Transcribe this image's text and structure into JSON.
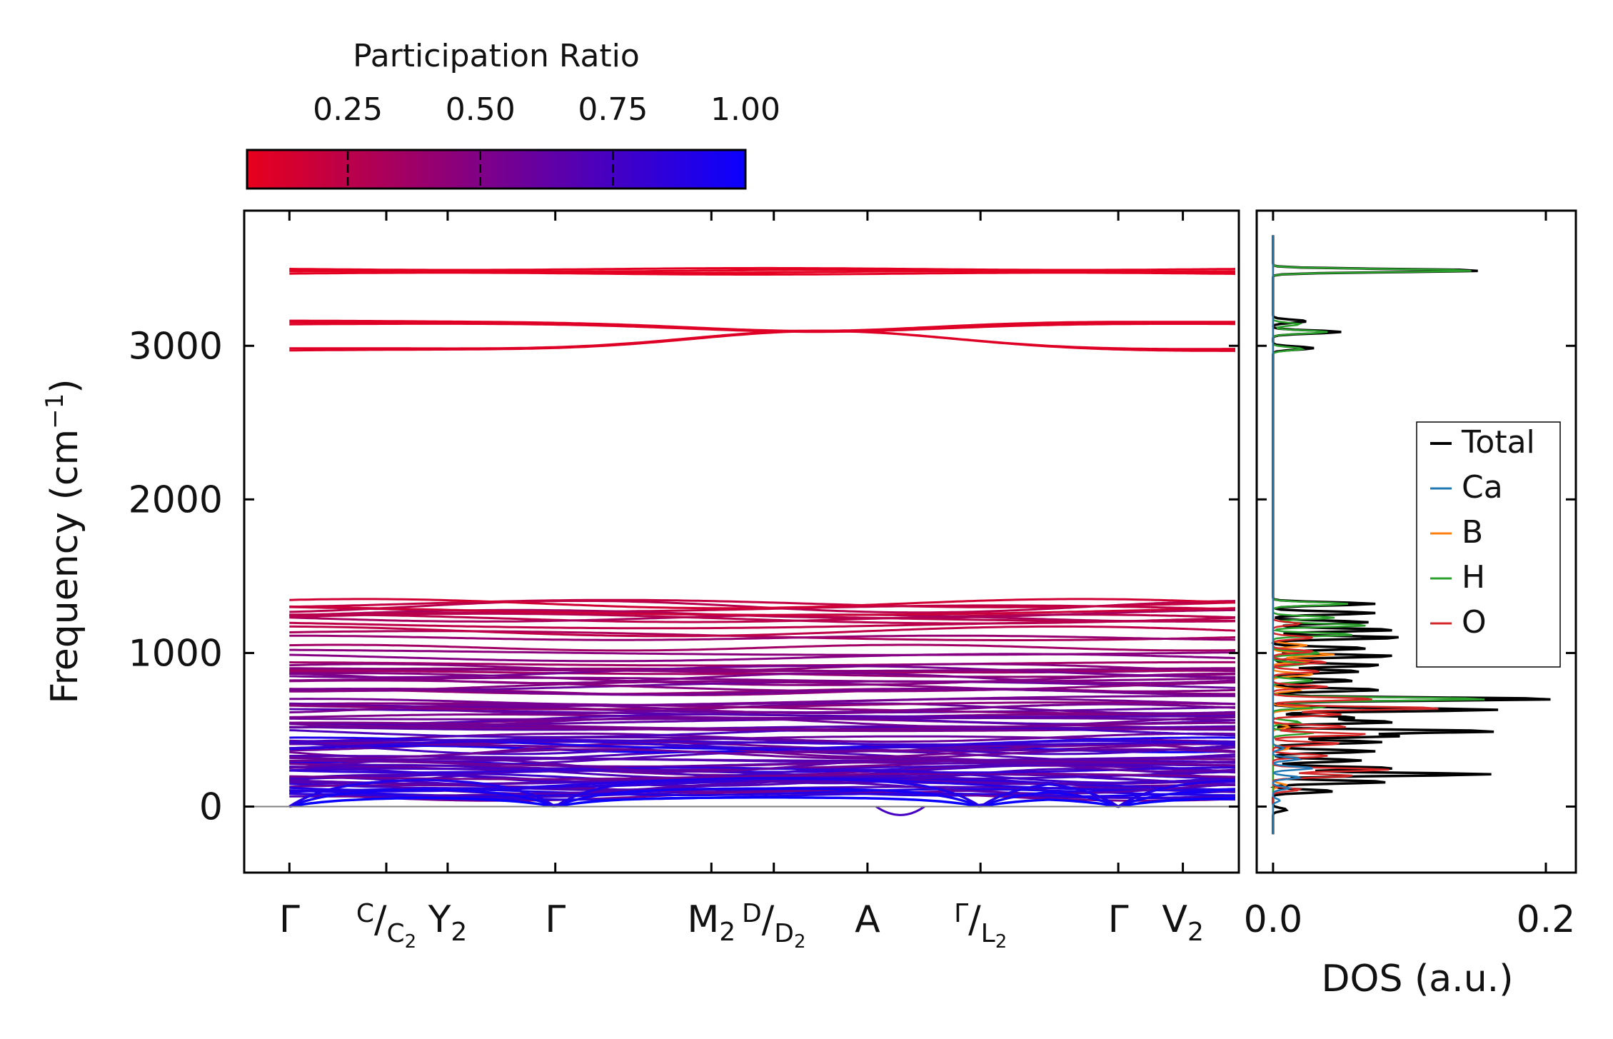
{
  "chart_data": [
    {
      "type": "line",
      "subtype": "phonon-band-structure",
      "ylabel": "Frequency (cm",
      "ylabel_sup": "−1",
      "ylabel_close": ")",
      "ylim": [
        -430,
        3880
      ],
      "yticks": [
        0,
        1000,
        2000,
        3000
      ],
      "ytick_labels": [
        "0",
        "1000",
        "2000",
        "3000"
      ],
      "zero_line": true,
      "path_segments": [
        [
          0,
          8
        ],
        [
          8,
          12
        ]
      ],
      "kpoints": [
        {
          "x": 0,
          "label": "Γ"
        },
        {
          "x": 0.9,
          "label": "C",
          "label2": "C",
          "sub2": "2"
        },
        {
          "x": 1.47,
          "label": "Y",
          "sub": "2"
        },
        {
          "x": 2.47,
          "label": "Γ"
        },
        {
          "x": 3.92,
          "label": "M",
          "sub": "2"
        },
        {
          "x": 4.5,
          "label": "D",
          "label2": "D",
          "sub2": "2"
        },
        {
          "x": 5.37,
          "label": "A"
        },
        {
          "x": 6.42,
          "label": "Γ",
          "label2": "L",
          "sub2": "2"
        },
        {
          "x": 7.7,
          "label": "Γ"
        },
        {
          "x": 8.3,
          "label": "V",
          "sub": "2"
        }
      ],
      "xlim": [
        -0.42,
        8.82
      ],
      "bands": {
        "high": [
          3470,
          3480,
          3490,
          3500
        ],
        "ch_upper": [
          3140,
          3150,
          3160
        ],
        "ch_lower": [
          2970,
          2980
        ],
        "ch_mid": 3095,
        "mid_range": [
          430,
          1330
        ],
        "low_range": [
          60,
          420
        ]
      },
      "colorbar": {
        "title": "Participation Ratio",
        "range": [
          0.06,
          1.0
        ],
        "ticks": [
          0.25,
          0.5,
          0.75,
          1.0
        ],
        "tick_labels": [
          "0.25",
          "0.50",
          "0.75",
          "1.00"
        ],
        "low_color": "#e8001c",
        "high_color": "#0a00ff"
      }
    },
    {
      "type": "line",
      "subtype": "density-of-states",
      "xlabel": "DOS (a.u.)",
      "xlim": [
        -0.012,
        0.222
      ],
      "xticks": [
        0.0,
        0.2
      ],
      "xtick_labels": [
        "0.0",
        "0.2"
      ],
      "ylim": [
        -430,
        3880
      ],
      "legend_position": "center-right",
      "series": [
        {
          "name": "Total",
          "color": "#000000",
          "peaks": [
            [
              -20,
              0.01
            ],
            [
              100,
              0.045
            ],
            [
              160,
              0.085
            ],
            [
              210,
              0.16
            ],
            [
              250,
              0.09
            ],
            [
              300,
              0.065
            ],
            [
              360,
              0.075
            ],
            [
              420,
              0.08
            ],
            [
              460,
              0.095
            ],
            [
              490,
              0.165
            ],
            [
              550,
              0.09
            ],
            [
              580,
              0.06
            ],
            [
              630,
              0.165
            ],
            [
              700,
              0.21
            ],
            [
              760,
              0.08
            ],
            [
              820,
              0.06
            ],
            [
              880,
              0.065
            ],
            [
              920,
              0.08
            ],
            [
              980,
              0.09
            ],
            [
              1030,
              0.07
            ],
            [
              1100,
              0.095
            ],
            [
              1150,
              0.09
            ],
            [
              1200,
              0.07
            ],
            [
              1260,
              0.075
            ],
            [
              1320,
              0.075
            ],
            [
              2985,
              0.03
            ],
            [
              3090,
              0.05
            ],
            [
              3160,
              0.025
            ],
            [
              3490,
              0.155
            ]
          ]
        },
        {
          "name": "Ca",
          "color": "#1f77b4",
          "peaks": [
            [
              40,
              0.005
            ],
            [
              120,
              0.012
            ],
            [
              190,
              0.02
            ],
            [
              250,
              0.03
            ],
            [
              310,
              0.02
            ],
            [
              380,
              0.008
            ]
          ]
        },
        {
          "name": "B",
          "color": "#ff7f0e",
          "peaks": [
            [
              140,
              0.01
            ],
            [
              380,
              0.012
            ],
            [
              520,
              0.012
            ],
            [
              640,
              0.03
            ],
            [
              760,
              0.02
            ],
            [
              860,
              0.03
            ],
            [
              950,
              0.03
            ],
            [
              990,
              0.045
            ],
            [
              1050,
              0.025
            ]
          ]
        },
        {
          "name": "H",
          "color": "#2ca02c",
          "peaks": [
            [
              480,
              0.03
            ],
            [
              550,
              0.02
            ],
            [
              650,
              0.04
            ],
            [
              700,
              0.16
            ],
            [
              820,
              0.03
            ],
            [
              930,
              0.025
            ],
            [
              1000,
              0.035
            ],
            [
              1120,
              0.06
            ],
            [
              1180,
              0.07
            ],
            [
              1230,
              0.045
            ],
            [
              1320,
              0.055
            ],
            [
              2980,
              0.022
            ],
            [
              3090,
              0.04
            ],
            [
              3140,
              0.02
            ],
            [
              3490,
              0.15
            ]
          ]
        },
        {
          "name": "O",
          "color": "#d62728",
          "peaks": [
            [
              110,
              0.02
            ],
            [
              200,
              0.06
            ],
            [
              240,
              0.085
            ],
            [
              330,
              0.04
            ],
            [
              410,
              0.05
            ],
            [
              470,
              0.07
            ],
            [
              520,
              0.055
            ],
            [
              600,
              0.05
            ],
            [
              640,
              0.125
            ],
            [
              700,
              0.075
            ],
            [
              780,
              0.04
            ],
            [
              880,
              0.035
            ],
            [
              940,
              0.04
            ],
            [
              1010,
              0.03
            ],
            [
              1100,
              0.03
            ],
            [
              1190,
              0.02
            ]
          ]
        }
      ]
    }
  ]
}
